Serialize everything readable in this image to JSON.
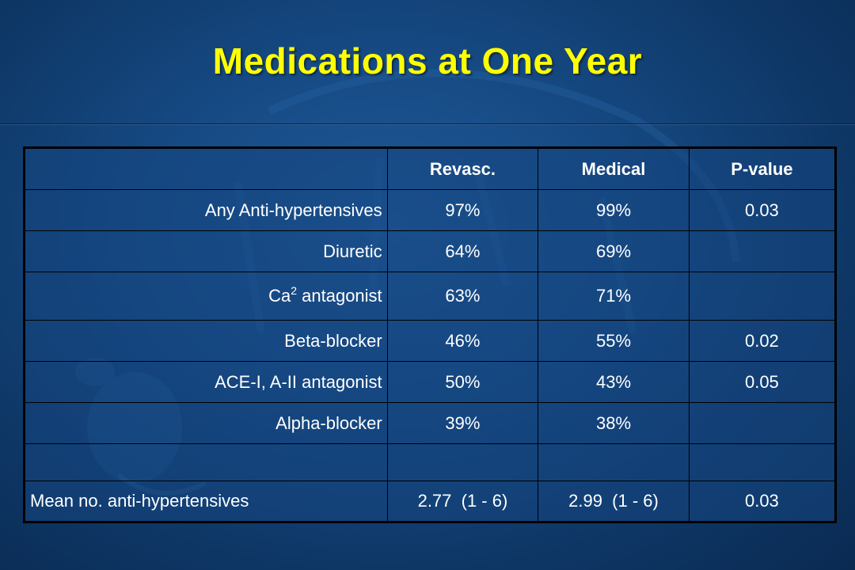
{
  "slide": {
    "title": "Medications at One Year"
  },
  "table": {
    "headers": [
      "",
      "Revasc.",
      "Medical",
      "P-value"
    ],
    "rows": [
      {
        "label": "Any Anti-hypertensives",
        "revasc": "97%",
        "medical": "99%",
        "pvalue": "0.03"
      },
      {
        "label": "Diuretic",
        "revasc": "64%",
        "medical": "69%",
        "pvalue": ""
      },
      {
        "label_prefix": "Ca",
        "label_sup": "2",
        "label_suffix": " antagonist",
        "revasc": "63%",
        "medical": "71%",
        "pvalue": ""
      },
      {
        "label": "Beta-blocker",
        "revasc": "46%",
        "medical": "55%",
        "pvalue": "0.02"
      },
      {
        "label": "ACE-I, A-II antagonist",
        "revasc": "50%",
        "medical": "43%",
        "pvalue": "0.05"
      },
      {
        "label": "Alpha-blocker",
        "revasc": "39%",
        "medical": "38%",
        "pvalue": ""
      },
      {
        "label": "",
        "revasc": "",
        "medical": "",
        "pvalue": ""
      },
      {
        "label": "Mean no. anti-hypertensives",
        "revasc": "2.77  (1 - 6)",
        "medical": "2.99  (1 - 6)",
        "pvalue": "0.03"
      }
    ]
  },
  "colors": {
    "title": "#ffff00",
    "background": "#164a84",
    "text": "#ffffff"
  }
}
